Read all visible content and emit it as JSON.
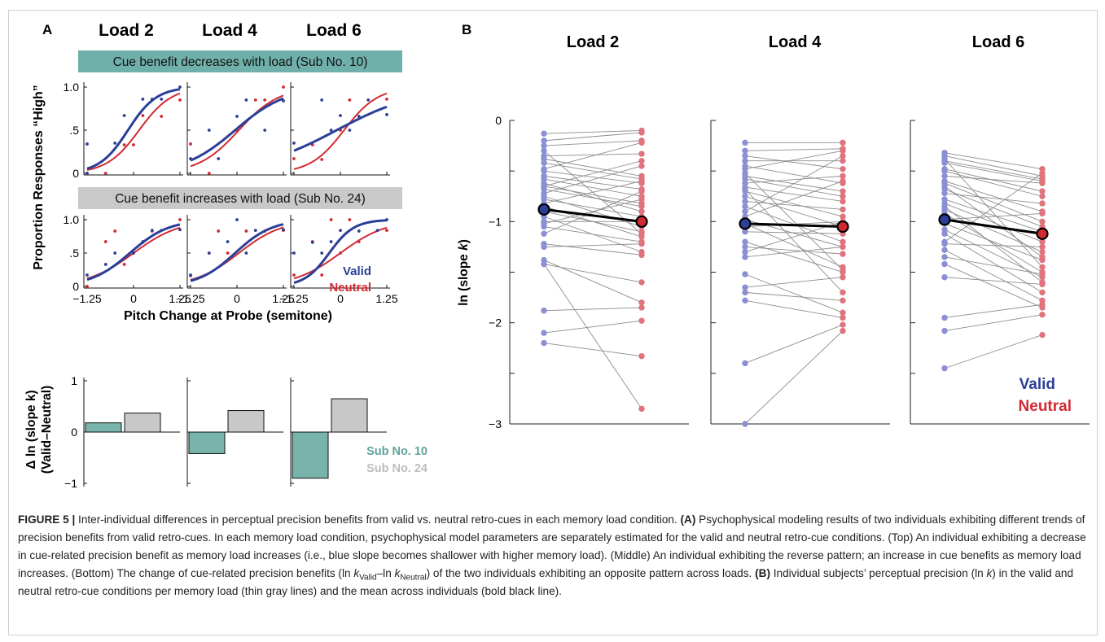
{
  "panel_a": {
    "letter": "A",
    "loads": [
      "Load 2",
      "Load 4",
      "Load 6"
    ],
    "banner_top": "Cue benefit decreases with load (Sub No. 10)",
    "banner_mid": "Cue benefit increases with load (Sub No. 24)",
    "y_label": "Proportion Responses “High”",
    "x_label": "Pitch Change at Probe (semitone)",
    "y_ticks": [
      "0",
      ".5",
      "1.0"
    ],
    "x_ticks": [
      "−1.25",
      "0",
      "1.25"
    ],
    "legend_valid": "Valid",
    "legend_neutral": "Neutral",
    "bar_y_label_1": "Δ ln (slope k)",
    "bar_y_label_2": "(Valid–Neutral)",
    "bar_y_ticks": [
      "1",
      "0",
      "−1"
    ],
    "bar_legend_sub10": "Sub No. 10",
    "bar_legend_sub24": "Sub No. 24",
    "colors": {
      "valid": "#2b3f98",
      "neutral": "#d22a33",
      "teal": "#78b3ac",
      "gray": "#c8c8c8",
      "banner_teal": "#6fb0aa",
      "banner_gray": "#c9c9c9"
    }
  },
  "panel_b": {
    "letter": "B",
    "loads": [
      "Load 2",
      "Load 4",
      "Load 6"
    ],
    "y_label_prefix": "ln (slope ",
    "y_label_k": "k",
    "y_label_suffix": ")",
    "y_ticks": [
      "0",
      "−1",
      "−2",
      "−3"
    ],
    "legend_valid": "Valid",
    "legend_neutral": "Neutral",
    "colors": {
      "valid": "#8a90d2",
      "neutral": "#e0737d",
      "line": "#8c8c8c",
      "mean": "#000000",
      "legend_valid": "#2b3f98",
      "legend_neutral": "#d22a33"
    }
  },
  "caption": {
    "label": "FIGURE 5 |",
    "p1": " Inter-individual differences in perceptual precision benefits from valid vs. neutral retro-cues in each memory load condition. ",
    "a": "(A)",
    "p2": " Psychophysical modeling results of two individuals exhibiting different trends of precision benefits from valid retro-cues. In each memory load condition, psychophysical model parameters are separately estimated for the valid and neutral retro-cue conditions. (Top) An individual exhibiting a decrease in cue-related precision benefit as memory load increases (i.e., blue slope becomes shallower with higher memory load). (Middle) An individual exhibiting the reverse pattern; an increase in cue benefits as memory load increases. (Bottom) The change of cue-related precision benefits (ln ",
    "kv": "k",
    "kv_sub": "Valid",
    "dash": "–ln ",
    "kn": "k",
    "kn_sub": "Neutral",
    "p3": ") of the two individuals exhibiting an opposite pattern across loads. ",
    "b": "(B)",
    "p4": " Individual subjects’ perceptual precision (ln ",
    "kk": "k",
    "p5": ") in the valid and neutral retro-cue conditions per memory load (thin gray lines) and the mean across individuals (bold black line)."
  },
  "chart_data": [
    {
      "type": "scatter",
      "panel": "A-top",
      "subject": "Sub No. 10",
      "x_ticks": [
        -1.25,
        0,
        1.25
      ],
      "ylim": [
        0,
        1
      ],
      "series_names": [
        "Valid",
        "Neutral"
      ],
      "loads": [
        {
          "load": "Load 2",
          "valid": {
            "mu": -0.15,
            "k": 2.6,
            "points": [
              [
                -1.25,
                0.34
              ],
              [
                -1.25,
                0.0
              ],
              [
                -0.5,
                0.35
              ],
              [
                -0.25,
                0.67
              ],
              [
                0.25,
                0.86
              ],
              [
                0.5,
                0.86
              ],
              [
                0.75,
                0.86
              ],
              [
                1.25,
                1.0
              ]
            ]
          },
          "neutral": {
            "mu": 0.15,
            "k": 2.3,
            "points": [
              [
                -1.25,
                0.0
              ],
              [
                -0.75,
                0.0
              ],
              [
                -0.25,
                0.33
              ],
              [
                0.0,
                0.33
              ],
              [
                0.25,
                0.67
              ],
              [
                0.75,
                0.66
              ],
              [
                1.25,
                0.85
              ]
            ]
          }
        },
        {
          "load": "Load 4",
          "valid": {
            "mu": -0.05,
            "k": 1.45,
            "points": [
              [
                -1.25,
                0.17
              ],
              [
                -0.75,
                0.5
              ],
              [
                -0.5,
                0.17
              ],
              [
                0.0,
                0.66
              ],
              [
                0.25,
                0.85
              ],
              [
                0.75,
                0.5
              ],
              [
                1.25,
                0.84
              ]
            ]
          },
          "neutral": {
            "mu": 0.05,
            "k": 1.85,
            "points": [
              [
                -1.25,
                0.34
              ],
              [
                -0.75,
                0.0
              ],
              [
                0.0,
                0.5
              ],
              [
                0.5,
                0.85
              ],
              [
                0.75,
                0.85
              ],
              [
                1.25,
                1.0
              ]
            ]
          }
        },
        {
          "load": "Load 6",
          "valid": {
            "mu": -0.1,
            "k": 0.9,
            "points": [
              [
                -1.25,
                0.35
              ],
              [
                -0.5,
                0.85
              ],
              [
                -0.25,
                0.5
              ],
              [
                0.0,
                0.67
              ],
              [
                0.25,
                0.5
              ],
              [
                0.5,
                0.66
              ],
              [
                0.75,
                0.85
              ],
              [
                1.25,
                0.68
              ]
            ]
          },
          "neutral": {
            "mu": 0.1,
            "k": 2.2,
            "points": [
              [
                -1.25,
                0.17
              ],
              [
                -0.75,
                0.33
              ],
              [
                -0.5,
                0.16
              ],
              [
                0.0,
                0.5
              ],
              [
                0.25,
                0.85
              ],
              [
                1.25,
                0.86
              ]
            ]
          }
        }
      ]
    },
    {
      "type": "scatter",
      "panel": "A-middle",
      "subject": "Sub No. 24",
      "x_ticks": [
        -1.25,
        0,
        1.25
      ],
      "ylim": [
        0,
        1
      ],
      "series_names": [
        "Valid",
        "Neutral"
      ],
      "loads": [
        {
          "load": "Load 2",
          "valid": {
            "mu": -0.1,
            "k": 1.9,
            "points": [
              [
                -1.25,
                0.17
              ],
              [
                -0.75,
                0.33
              ],
              [
                -0.5,
                0.5
              ],
              [
                0.0,
                0.5
              ],
              [
                0.25,
                0.67
              ],
              [
                0.5,
                0.84
              ],
              [
                0.75,
                0.84
              ],
              [
                1.25,
                0.85
              ]
            ]
          },
          "neutral": {
            "mu": 0.0,
            "k": 1.6,
            "points": [
              [
                -1.25,
                0.0
              ],
              [
                -0.75,
                0.67
              ],
              [
                -0.5,
                0.83
              ],
              [
                -0.25,
                0.33
              ],
              [
                0.0,
                0.5
              ],
              [
                0.25,
                0.66
              ],
              [
                0.5,
                0.83
              ],
              [
                1.25,
                1.0
              ]
            ]
          }
        },
        {
          "load": "Load 4",
          "valid": {
            "mu": -0.05,
            "k": 2.0,
            "points": [
              [
                -1.25,
                0.17
              ],
              [
                -0.75,
                0.5
              ],
              [
                -0.25,
                0.67
              ],
              [
                0.0,
                1.0
              ],
              [
                0.25,
                0.5
              ],
              [
                0.5,
                0.84
              ],
              [
                1.25,
                0.85
              ]
            ]
          },
          "neutral": {
            "mu": 0.05,
            "k": 1.7,
            "points": [
              [
                -1.25,
                0.16
              ],
              [
                -0.75,
                0.5
              ],
              [
                -0.5,
                0.83
              ],
              [
                -0.25,
                0.5
              ],
              [
                0.25,
                0.83
              ],
              [
                0.75,
                0.83
              ],
              [
                1.25,
                0.84
              ]
            ]
          }
        },
        {
          "load": "Load 6",
          "valid": {
            "mu": -0.3,
            "k": 3.0,
            "points": [
              [
                -1.25,
                0.5
              ],
              [
                -0.75,
                0.66
              ],
              [
                -0.5,
                0.5
              ],
              [
                -0.25,
                0.67
              ],
              [
                0.0,
                0.84
              ],
              [
                0.5,
                0.83
              ],
              [
                1.0,
                0.84
              ],
              [
                1.25,
                1.0
              ]
            ]
          },
          "neutral": {
            "mu": 0.0,
            "k": 1.6,
            "points": [
              [
                -1.25,
                0.17
              ],
              [
                -0.75,
                0.67
              ],
              [
                -0.5,
                0.17
              ],
              [
                -0.25,
                1.0
              ],
              [
                0.0,
                0.5
              ],
              [
                0.25,
                1.0
              ],
              [
                0.5,
                0.67
              ],
              [
                1.25,
                0.84
              ]
            ]
          }
        }
      ]
    },
    {
      "type": "bar",
      "panel": "A-bottom",
      "categories": [
        "Load 2",
        "Load 4",
        "Load 6"
      ],
      "ylim": [
        -1,
        1
      ],
      "series": [
        {
          "name": "Sub No. 10",
          "values": [
            0.18,
            -0.42,
            -0.9
          ]
        },
        {
          "name": "Sub No. 24",
          "values": [
            0.37,
            0.42,
            0.65
          ]
        }
      ]
    },
    {
      "type": "line",
      "panel": "B",
      "ylim": [
        -3,
        0
      ],
      "y_ticks": [
        0,
        -1,
        -2,
        -3
      ],
      "series_names": [
        "Valid",
        "Neutral"
      ],
      "loads": [
        {
          "load": "Load 2",
          "mean": {
            "valid": -0.88,
            "neutral": -1.0
          },
          "pairs": [
            [
              -0.13,
              -0.1
            ],
            [
              -0.2,
              -0.12
            ],
            [
              -0.25,
              -0.2
            ],
            [
              -0.35,
              -0.33
            ],
            [
              -0.38,
              -0.55
            ],
            [
              -0.42,
              -0.58
            ],
            [
              -0.48,
              -0.22
            ],
            [
              -0.5,
              -0.62
            ],
            [
              -0.55,
              -0.68
            ],
            [
              -0.58,
              -0.75
            ],
            [
              -0.62,
              -0.9
            ],
            [
              -0.65,
              -0.82
            ],
            [
              -0.68,
              -0.85
            ],
            [
              -0.72,
              -0.45
            ],
            [
              -0.75,
              -1.05
            ],
            [
              -0.78,
              -0.95
            ],
            [
              -0.82,
              -0.6
            ],
            [
              -0.9,
              -1.1
            ],
            [
              -0.95,
              -1.3
            ],
            [
              -1.0,
              -1.0
            ],
            [
              -1.05,
              -1.2
            ],
            [
              -1.12,
              -0.7
            ],
            [
              -1.22,
              -1.33
            ],
            [
              -1.25,
              -1.22
            ],
            [
              -1.38,
              -1.8
            ],
            [
              -1.42,
              -1.6
            ],
            [
              -1.88,
              -1.85
            ],
            [
              -2.1,
              -1.98
            ],
            [
              -2.2,
              -2.33
            ],
            [
              -1.42,
              -2.85
            ],
            [
              -1.02,
              -0.78
            ],
            [
              -0.3,
              -1.12
            ],
            [
              -0.65,
              -0.4
            ],
            [
              -0.85,
              -1.15
            ]
          ]
        },
        {
          "load": "Load 4",
          "mean": {
            "valid": -1.02,
            "neutral": -1.05
          },
          "pairs": [
            [
              -0.22,
              -0.22
            ],
            [
              -0.3,
              -0.28
            ],
            [
              -0.35,
              -0.48
            ],
            [
              -0.4,
              -0.4
            ],
            [
              -0.45,
              -0.62
            ],
            [
              -0.48,
              -0.3
            ],
            [
              -0.55,
              -0.7
            ],
            [
              -0.58,
              -0.75
            ],
            [
              -0.62,
              -0.55
            ],
            [
              -0.66,
              -0.8
            ],
            [
              -0.7,
              -0.95
            ],
            [
              -0.75,
              -1.05
            ],
            [
              -0.8,
              -0.88
            ],
            [
              -0.85,
              -1.2
            ],
            [
              -0.9,
              -0.35
            ],
            [
              -0.98,
              -1.25
            ],
            [
              -1.02,
              -1.45
            ],
            [
              -1.05,
              -1.0
            ],
            [
              -1.1,
              -1.12
            ],
            [
              -1.2,
              -1.5
            ],
            [
              -1.25,
              -1.32
            ],
            [
              -1.35,
              -1.25
            ],
            [
              -1.52,
              -1.9
            ],
            [
              -1.65,
              -1.55
            ],
            [
              -1.7,
              -1.78
            ],
            [
              -1.78,
              -1.95
            ],
            [
              -2.4,
              -2.02
            ],
            [
              -3.0,
              -2.08
            ],
            [
              -0.95,
              -0.6
            ],
            [
              -0.68,
              -1.7
            ],
            [
              -1.3,
              -1.0
            ],
            [
              -0.52,
              -1.48
            ]
          ]
        },
        {
          "load": "Load 6",
          "mean": {
            "valid": -0.98,
            "neutral": -1.12
          },
          "pairs": [
            [
              -0.32,
              -0.48
            ],
            [
              -0.35,
              -0.55
            ],
            [
              -0.4,
              -0.58
            ],
            [
              -0.42,
              -0.6
            ],
            [
              -0.48,
              -0.7
            ],
            [
              -0.5,
              -0.75
            ],
            [
              -0.55,
              -0.62
            ],
            [
              -0.6,
              -0.9
            ],
            [
              -0.62,
              -1.0
            ],
            [
              -0.68,
              -1.05
            ],
            [
              -0.72,
              -0.82
            ],
            [
              -0.78,
              -1.1
            ],
            [
              -0.82,
              -1.2
            ],
            [
              -0.88,
              -1.3
            ],
            [
              -0.92,
              -1.5
            ],
            [
              -0.98,
              -0.92
            ],
            [
              -1.02,
              -1.38
            ],
            [
              -1.08,
              -1.55
            ],
            [
              -1.12,
              -1.7
            ],
            [
              -1.22,
              -1.25
            ],
            [
              -1.28,
              -1.78
            ],
            [
              -1.35,
              -1.52
            ],
            [
              -1.42,
              -1.85
            ],
            [
              -1.55,
              -1.62
            ],
            [
              -1.95,
              -1.82
            ],
            [
              -2.08,
              -1.92
            ],
            [
              -2.45,
              -2.12
            ],
            [
              -0.38,
              -1.45
            ],
            [
              -1.2,
              -0.52
            ],
            [
              -0.65,
              -1.35
            ],
            [
              -0.85,
              -1.6
            ]
          ]
        }
      ]
    }
  ]
}
